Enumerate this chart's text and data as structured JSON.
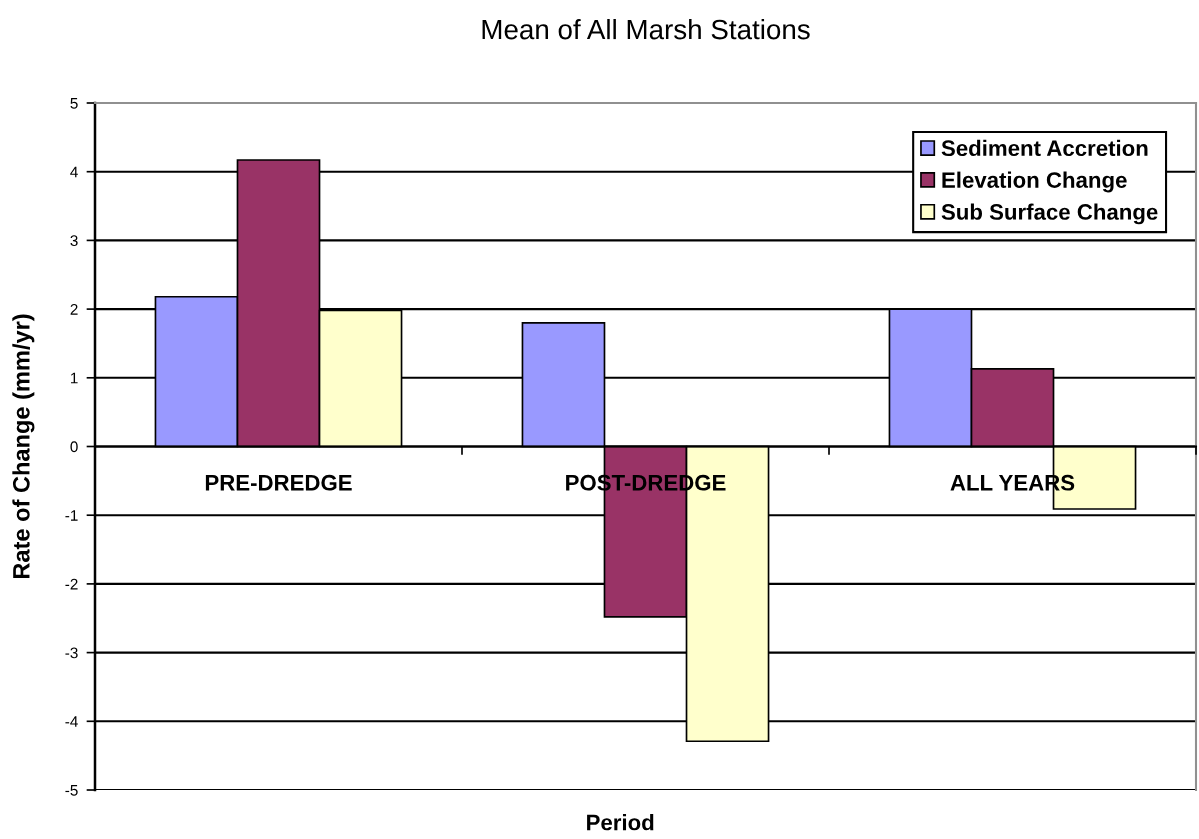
{
  "chart_data": {
    "type": "bar",
    "title": "Mean of All Marsh Stations",
    "xlabel": "Period",
    "ylabel": "Rate of Change (mm/yr)",
    "categories": [
      "PRE-DREDGE",
      "POST-DREDGE",
      "ALL YEARS"
    ],
    "series": [
      {
        "name": "Sediment Accretion",
        "color": "#9999ff",
        "values": [
          2.18,
          1.8,
          2.0
        ]
      },
      {
        "name": "Elevation Change",
        "color": "#993366",
        "values": [
          4.17,
          -2.48,
          1.13
        ]
      },
      {
        "name": "Sub Surface Change",
        "color": "#ffffcc",
        "values": [
          1.98,
          -4.29,
          -0.91
        ]
      }
    ],
    "ylim": [
      -5,
      5
    ],
    "yticks": [
      -5,
      -4,
      -3,
      -2,
      -1,
      0,
      1,
      2,
      3,
      4,
      5
    ],
    "grid": "y",
    "legend": "top right"
  }
}
